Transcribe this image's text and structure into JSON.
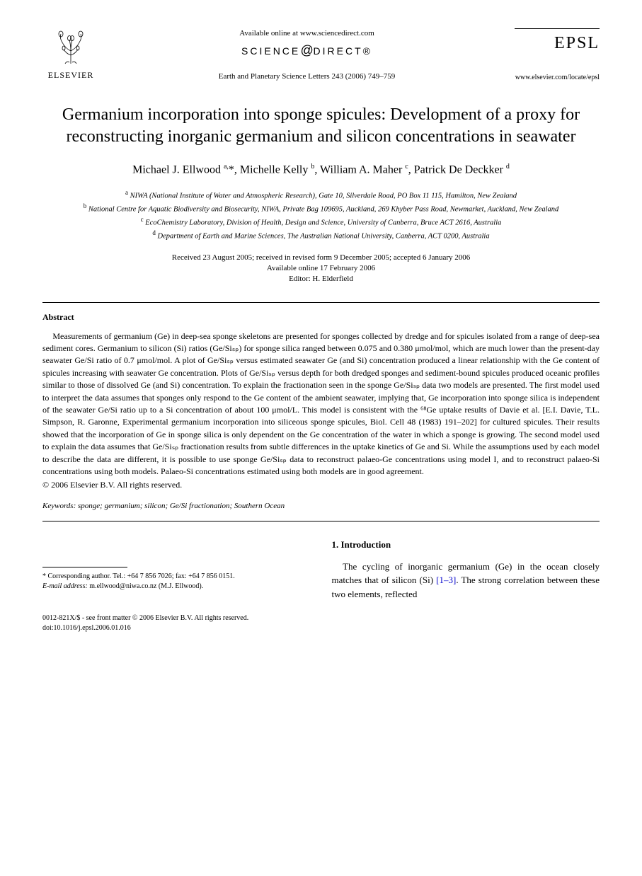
{
  "header": {
    "publisher_name": "ELSEVIER",
    "available_online": "Available online at www.sciencedirect.com",
    "science_direct_pre": "SCIENCE",
    "science_direct_at": "@",
    "science_direct_post": "DIRECT®",
    "journal_ref": "Earth and Planetary Science Letters 243 (2006) 749–759",
    "journal_abbrev": "EPSL",
    "journal_url": "www.elsevier.com/locate/epsl"
  },
  "title": "Germanium incorporation into sponge spicules: Development of a proxy for reconstructing inorganic germanium and silicon concentrations in seawater",
  "authors_html": "Michael J. Ellwood <sup>a,</sup>*, Michelle Kelly <sup>b</sup>, William A. Maher <sup>c</sup>, Patrick De Deckker <sup>d</sup>",
  "affiliations": {
    "a": "NIWA (National Institute of Water and Atmospheric Research), Gate 10, Silverdale Road, PO Box 11 115, Hamilton, New Zealand",
    "b": "National Centre for Aquatic Biodiversity and Biosecurity, NIWA, Private Bag 109695, Auckland, 269 Khyber Pass Road, Newmarket, Auckland, New Zealand",
    "c": "EcoChemistry Laboratory, Division of Health, Design and Science, University of Canberra, Bruce ACT 2616, Australia",
    "d": "Department of Earth and Marine Sciences, The Australian National University, Canberra, ACT 0200, Australia"
  },
  "dates": {
    "received": "Received 23 August 2005; received in revised form 9 December 2005; accepted 6 January 2006",
    "online": "Available online 17 February 2006",
    "editor": "Editor: H. Elderfield"
  },
  "abstract": {
    "heading": "Abstract",
    "body": "Measurements of germanium (Ge) in deep-sea sponge skeletons are presented for sponges collected by dredge and for spicules isolated from a range of deep-sea sediment cores. Germanium to silicon (Si) ratios (Ge/Siₛₚ) for sponge silica ranged between 0.075 and 0.380 μmol/mol, which are much lower than the present-day seawater Ge/Si ratio of 0.7 μmol/mol. A plot of Ge/Siₛₚ versus estimated seawater Ge (and Si) concentration produced a linear relationship with the Ge content of spicules increasing with seawater Ge concentration. Plots of Ge/Siₛₚ versus depth for both dredged sponges and sediment-bound spicules produced oceanic profiles similar to those of dissolved Ge (and Si) concentration. To explain the fractionation seen in the sponge Ge/Siₛₚ data two models are presented. The first model used to interpret the data assumes that sponges only respond to the Ge content of the ambient seawater, implying that, Ge incorporation into sponge silica is independent of the seawater Ge/Si ratio up to a Si concentration of about 100 μmol/L. This model is consistent with the ⁶⁸Ge uptake results of Davie et al. [E.I. Davie, T.L. Simpson, R. Garonne, Experimental germanium incorporation into siliceous sponge spicules, Biol. Cell 48 (1983) 191–202] for cultured spicules. Their results showed that the incorporation of Ge in sponge silica is only dependent on the Ge concentration of the water in which a sponge is growing. The second model used to explain the data assumes that Ge/Siₛₚ fractionation results from subtle differences in the uptake kinetics of Ge and Si. While the assumptions used by each model to describe the data are different, it is possible to use sponge Ge/Siₛₚ data to reconstruct palaeo-Ge concentrations using model I, and to reconstruct palaeo-Si concentrations using both models. Palaeo-Si concentrations estimated using both models are in good agreement.",
    "copyright": "© 2006 Elsevier B.V. All rights reserved."
  },
  "keywords": {
    "label": "Keywords:",
    "text": " sponge; germanium; silicon; Ge/Si fractionation; Southern Ocean"
  },
  "corresponding": {
    "line1": "* Corresponding author. Tel.: +64 7 856 7026; fax: +64 7 856 0151.",
    "email_label": "E-mail address:",
    "email": " m.ellwood@niwa.co.nz (M.J. Ellwood)."
  },
  "intro": {
    "heading": "1. Introduction",
    "body_pre": "The cycling of inorganic germanium (Ge) in the ocean closely matches that of silicon (Si) ",
    "ref": "[1–3]",
    "body_post": ". The strong correlation between these two elements, reflected"
  },
  "footer": {
    "line1": "0012-821X/$ - see front matter © 2006 Elsevier B.V. All rights reserved.",
    "line2": "doi:10.1016/j.epsl.2006.01.016"
  },
  "colors": {
    "text": "#000000",
    "background": "#ffffff",
    "link": "#0000cc"
  }
}
